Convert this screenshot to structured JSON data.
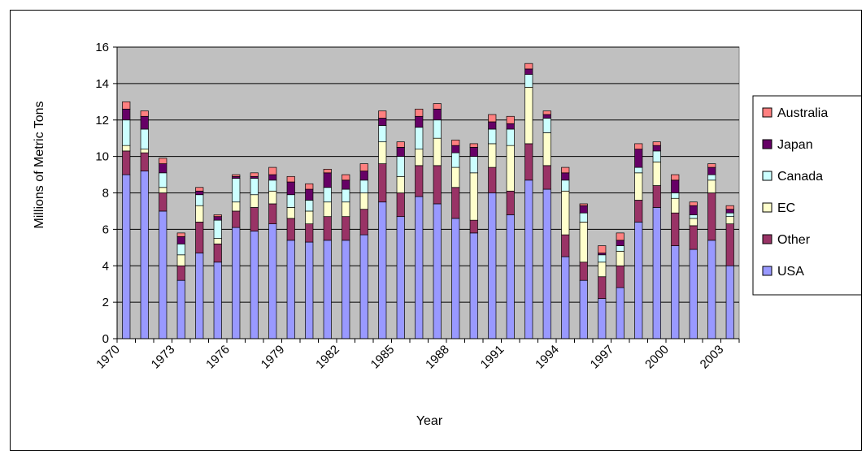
{
  "chart_data": {
    "type": "bar",
    "stacked": true,
    "title": "",
    "xlabel": "Year",
    "ylabel": "Millions of Metric Tons",
    "ylim": [
      0,
      16
    ],
    "yticks": [
      0,
      2,
      4,
      6,
      8,
      10,
      12,
      14,
      16
    ],
    "xtick_labels": [
      "1970",
      "1973",
      "1976",
      "1979",
      "1982",
      "1985",
      "1988",
      "1991",
      "1994",
      "1997",
      "2000",
      "2003"
    ],
    "categories": [
      "1970",
      "1971",
      "1972",
      "1973",
      "1974",
      "1975",
      "1976",
      "1977",
      "1978",
      "1979",
      "1980",
      "1981",
      "1982",
      "1983",
      "1984",
      "1985",
      "1986",
      "1987",
      "1988",
      "1989",
      "1990",
      "1991",
      "1992",
      "1993",
      "1994",
      "1995",
      "1996",
      "1997",
      "1998",
      "1999",
      "2000",
      "2001",
      "2002",
      "2003"
    ],
    "grid": true,
    "legend_position": "right",
    "plot_background": "#c0c0c0",
    "series": [
      {
        "name": "USA",
        "color": "#9999ff",
        "values": [
          9.0,
          9.2,
          7.0,
          3.2,
          4.7,
          4.2,
          6.1,
          5.9,
          6.3,
          5.4,
          5.3,
          5.4,
          5.4,
          5.7,
          7.5,
          6.7,
          7.8,
          7.4,
          6.6,
          5.8,
          8.0,
          6.8,
          8.7,
          8.2,
          4.5,
          3.2,
          2.2,
          2.8,
          6.4,
          7.2,
          5.1,
          4.9,
          5.4,
          4.0
        ]
      },
      {
        "name": "Other",
        "color": "#993366",
        "values": [
          1.3,
          1.0,
          1.0,
          0.8,
          1.7,
          1.0,
          0.9,
          1.3,
          1.1,
          1.2,
          1.0,
          1.3,
          1.3,
          1.4,
          2.1,
          1.3,
          1.7,
          2.1,
          1.7,
          0.7,
          1.4,
          1.3,
          2.0,
          1.3,
          1.2,
          1.0,
          1.2,
          1.2,
          1.2,
          1.2,
          1.8,
          1.3,
          2.6,
          2.3
        ]
      },
      {
        "name": "EC",
        "color": "#ffffcc",
        "values": [
          0.3,
          0.2,
          0.3,
          0.6,
          0.9,
          0.3,
          0.5,
          0.7,
          0.7,
          0.6,
          0.7,
          0.8,
          0.8,
          0.9,
          1.2,
          0.9,
          0.9,
          1.5,
          1.1,
          2.6,
          1.3,
          2.5,
          3.1,
          1.8,
          2.4,
          2.2,
          0.8,
          0.8,
          1.5,
          1.3,
          0.8,
          0.4,
          0.7,
          0.4
        ]
      },
      {
        "name": "Canada",
        "color": "#ccffff",
        "values": [
          1.4,
          1.1,
          0.8,
          0.6,
          0.6,
          1.0,
          1.3,
          0.9,
          0.6,
          0.7,
          0.6,
          0.8,
          0.7,
          0.7,
          0.9,
          1.1,
          1.2,
          1.0,
          0.8,
          0.9,
          0.8,
          0.9,
          0.7,
          0.8,
          0.6,
          0.5,
          0.4,
          0.3,
          0.3,
          0.6,
          0.3,
          0.2,
          0.3,
          0.2
        ]
      },
      {
        "name": "Japan",
        "color": "#660066",
        "values": [
          0.6,
          0.7,
          0.5,
          0.4,
          0.2,
          0.2,
          0.1,
          0.1,
          0.3,
          0.7,
          0.6,
          0.8,
          0.5,
          0.5,
          0.4,
          0.5,
          0.6,
          0.6,
          0.4,
          0.5,
          0.4,
          0.3,
          0.3,
          0.2,
          0.4,
          0.4,
          0.1,
          0.3,
          1.0,
          0.3,
          0.7,
          0.5,
          0.4,
          0.2
        ]
      },
      {
        "name": "Australia",
        "color": "#ff8080",
        "values": [
          0.4,
          0.3,
          0.3,
          0.2,
          0.2,
          0.1,
          0.1,
          0.2,
          0.4,
          0.3,
          0.3,
          0.2,
          0.3,
          0.4,
          0.4,
          0.3,
          0.4,
          0.3,
          0.3,
          0.2,
          0.4,
          0.4,
          0.3,
          0.2,
          0.3,
          0.1,
          0.4,
          0.4,
          0.3,
          0.2,
          0.3,
          0.2,
          0.2,
          0.2
        ]
      }
    ]
  }
}
